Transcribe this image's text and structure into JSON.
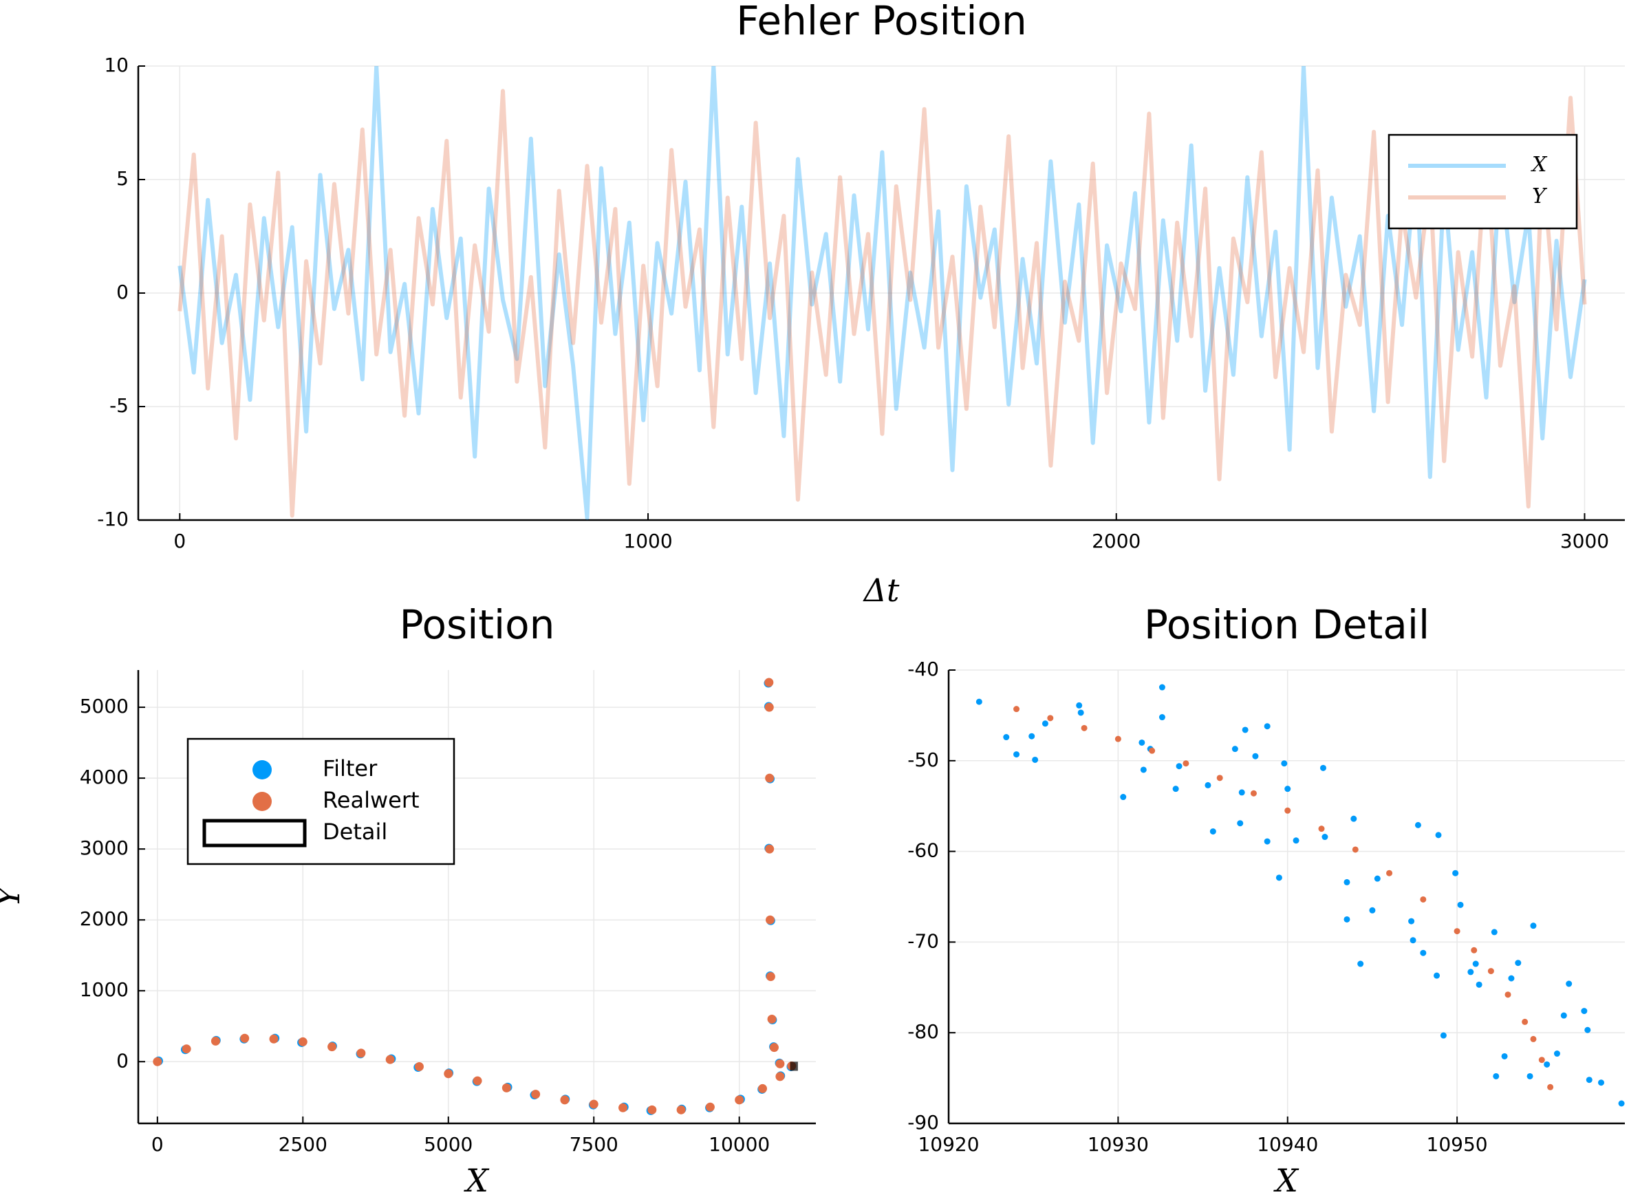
{
  "chart_data": [
    {
      "type": "line",
      "title": "Fehler Position",
      "xlabel": "Δt",
      "x": [
        0,
        30,
        60,
        90,
        120,
        150,
        180,
        210,
        240,
        270,
        300,
        330,
        360,
        390,
        420,
        450,
        480,
        510,
        540,
        570,
        600,
        630,
        660,
        690,
        720,
        750,
        780,
        810,
        840,
        870,
        900,
        930,
        960,
        990,
        1020,
        1050,
        1080,
        1110,
        1140,
        1170,
        1200,
        1230,
        1260,
        1290,
        1320,
        1350,
        1380,
        1410,
        1440,
        1470,
        1500,
        1530,
        1560,
        1590,
        1620,
        1650,
        1680,
        1710,
        1740,
        1770,
        1800,
        1830,
        1860,
        1890,
        1920,
        1950,
        1980,
        2010,
        2040,
        2070,
        2100,
        2130,
        2160,
        2190,
        2220,
        2250,
        2280,
        2310,
        2340,
        2370,
        2400,
        2430,
        2460,
        2490,
        2520,
        2550,
        2580,
        2610,
        2640,
        2670,
        2700,
        2730,
        2760,
        2790,
        2820,
        2850,
        2880,
        2910,
        2940,
        2970,
        3000
      ],
      "series": [
        {
          "name": "X",
          "color": "#009afa",
          "values": [
            1.2,
            -3.5,
            4.1,
            -2.2,
            0.8,
            -4.7,
            3.3,
            -1.5,
            2.9,
            -6.1,
            5.2,
            -0.7,
            1.9,
            -3.8,
            10,
            -2.6,
            0.4,
            -5.3,
            3.7,
            -1.1,
            2.4,
            -7.2,
            4.6,
            -0.3,
            -2.9,
            6.8,
            -4.1,
            1.7,
            -3.2,
            -9.9,
            5.5,
            -1.8,
            3.1,
            -5.6,
            2.2,
            -0.9,
            4.9,
            -3.4,
            10,
            -2.7,
            3.8,
            -4.4,
            1.3,
            -6.3,
            5.9,
            -0.5,
            2.6,
            -3.9,
            4.3,
            -1.6,
            6.2,
            -5.1,
            0.9,
            -2.4,
            3.6,
            -7.8,
            4.7,
            -0.2,
            2.8,
            -4.9,
            1.5,
            -3.1,
            5.8,
            -1.3,
            3.9,
            -6.6,
            2.1,
            -0.8,
            4.4,
            -5.7,
            3.2,
            -2.1,
            6.5,
            -4.3,
            1.1,
            -3.6,
            5.1,
            -1.9,
            2.7,
            -6.9,
            10,
            -3.3,
            4.2,
            -0.6,
            2.5,
            -5.2,
            3.4,
            -1.4,
            6.1,
            -8.1,
            4.8,
            -2.5,
            1.8,
            -4.6,
            5.6,
            -0.4,
            3.5,
            -6.4,
            2.3,
            -3.7,
            0.6
          ]
        },
        {
          "name": "Y",
          "color": "#e26f46",
          "values": [
            -0.8,
            6.1,
            -4.2,
            2.5,
            -6.4,
            3.9,
            -1.2,
            5.3,
            -9.8,
            1.4,
            -3.1,
            4.8,
            -0.9,
            7.2,
            -2.7,
            1.9,
            -5.4,
            3.3,
            -0.5,
            6.7,
            -4.6,
            2.1,
            -1.7,
            8.9,
            -3.9,
            0.7,
            -6.8,
            4.5,
            -2.2,
            5.6,
            -1.3,
            3.7,
            -8.4,
            1.2,
            -4.1,
            6.3,
            -0.6,
            2.8,
            -5.9,
            4.2,
            -2.9,
            7.5,
            -1.1,
            3.4,
            -9.1,
            0.9,
            -3.6,
            5.1,
            -1.8,
            2.6,
            -6.2,
            4.7,
            -0.3,
            8.1,
            -2.4,
            1.6,
            -5.1,
            3.8,
            -1.5,
            6.9,
            -3.3,
            2.2,
            -7.6,
            0.5,
            -2.1,
            5.7,
            -4.4,
            1.3,
            -0.7,
            7.9,
            -5.5,
            3.1,
            -1.9,
            4.6,
            -8.2,
            2.4,
            -0.4,
            6.2,
            -3.7,
            1.1,
            -2.6,
            5.4,
            -6.1,
            0.8,
            -1.4,
            7.1,
            -4.8,
            3.6,
            -0.2,
            4.9,
            -7.4,
            1.8,
            -2.8,
            6.4,
            -3.2,
            0.3,
            -9.4,
            5.8,
            -1.6,
            8.6,
            -0.5
          ]
        }
      ],
      "xlim": [
        -88.6,
        3086
      ],
      "ylim": [
        -10,
        10
      ],
      "xticks": [
        0,
        1000,
        2000,
        3000
      ],
      "yticks": [
        -10,
        -5,
        0,
        5,
        10
      ],
      "grid": true,
      "legend": "top right"
    },
    {
      "type": "scatter",
      "title": "Position",
      "xlabel": "X",
      "ylabel": "Y",
      "series": [
        {
          "name": "Filter",
          "color": "#009afa",
          "x": [
            20,
            480,
            1010,
            1490,
            2020,
            2480,
            3010,
            3490,
            4020,
            4480,
            5010,
            5490,
            6020,
            6480,
            7010,
            7490,
            8020,
            8480,
            9010,
            9490,
            10020,
            10390,
            10710,
            10890,
            10690,
            10590,
            10570,
            10530,
            10540,
            10510,
            10530,
            10505,
            10500
          ],
          "values": [
            10,
            170,
            300,
            320,
            330,
            270,
            220,
            110,
            40,
            -80,
            -160,
            -280,
            -360,
            -470,
            -530,
            -610,
            -640,
            -690,
            -670,
            -650,
            -530,
            -390,
            -200,
            -70,
            -20,
            210,
            590,
            1210,
            1990,
            3010,
            3990,
            5010,
            5340
          ]
        },
        {
          "name": "Realwert",
          "color": "#e26f46",
          "x": [
            0,
            500,
            1000,
            1500,
            2000,
            2500,
            3000,
            3500,
            4000,
            4500,
            5000,
            5500,
            6000,
            6500,
            7000,
            7500,
            8000,
            8500,
            9000,
            9500,
            10000,
            10400,
            10700,
            10900,
            10700,
            10600,
            10560,
            10540,
            10530,
            10520,
            10520,
            10515,
            10510
          ],
          "values": [
            0,
            180,
            290,
            330,
            320,
            280,
            210,
            120,
            30,
            -70,
            -170,
            -270,
            -370,
            -460,
            -540,
            -600,
            -650,
            -680,
            -680,
            -640,
            -540,
            -380,
            -210,
            -60,
            -30,
            200,
            600,
            1200,
            2000,
            3000,
            4000,
            5000,
            5350
          ]
        }
      ],
      "detail": {
        "name": "Detail",
        "x": [
          10920,
          10960
        ],
        "y": [
          -90,
          -40
        ]
      },
      "xlim": [
        -329,
        11316
      ],
      "ylim": [
        -871,
        5525
      ],
      "xticks": [
        0,
        2500,
        5000,
        7500,
        10000
      ],
      "yticks": [
        0,
        1000,
        2000,
        3000,
        4000,
        5000
      ],
      "grid": true,
      "legend": "top left"
    },
    {
      "type": "scatter",
      "title": "Position Detail",
      "xlabel": "X",
      "series": [
        {
          "name": "Filter",
          "color": "#009afa",
          "x": [
            10921.8,
            10923.4,
            10924.0,
            10924.9,
            10925.1,
            10925.7,
            10927.7,
            10927.8,
            10930.3,
            10931.4,
            10931.5,
            10931.9,
            10932.6,
            10932.6,
            10933.4,
            10933.6,
            10935.6,
            10935.3,
            10936.9,
            10937.2,
            10937.5,
            10937.3,
            10938.1,
            10938.8,
            10938.8,
            10939.5,
            10939.8,
            10940.0,
            10940.5,
            10942.1,
            10942.2,
            10943.5,
            10943.9,
            10943.5,
            10944.3,
            10945.0,
            10945.3,
            10947.3,
            10947.7,
            10947.4,
            10948.9,
            10948.0,
            10949.2,
            10948.8,
            10949.9,
            10950.2,
            10950.8,
            10951.1,
            10951.3,
            10952.2,
            10952.3,
            10952.8,
            10953.2,
            10953.6,
            10954.3,
            10954.5,
            10955.3,
            10955.9,
            10956.3,
            10956.6,
            10957.5,
            10957.7,
            10957.8,
            10958.5,
            10959.7
          ],
          "values": [
            -43.5,
            -47.4,
            -49.3,
            -47.3,
            -49.9,
            -45.9,
            -43.9,
            -44.7,
            -54.0,
            -48.0,
            -51.0,
            -48.7,
            -45.2,
            -41.9,
            -53.1,
            -50.6,
            -57.8,
            -52.7,
            -48.7,
            -56.9,
            -46.6,
            -53.5,
            -49.5,
            -46.2,
            -58.9,
            -62.9,
            -50.3,
            -53.1,
            -58.8,
            -50.8,
            -58.4,
            -63.4,
            -56.4,
            -67.5,
            -72.4,
            -66.5,
            -63.0,
            -67.7,
            -57.1,
            -69.8,
            -58.2,
            -71.2,
            -80.3,
            -73.7,
            -62.4,
            -65.9,
            -73.3,
            -72.4,
            -74.7,
            -68.9,
            -84.8,
            -82.6,
            -74.0,
            -72.3,
            -84.8,
            -68.2,
            -83.5,
            -82.3,
            -78.1,
            -74.6,
            -77.6,
            -79.7,
            -85.2,
            -85.5,
            -87.8
          ]
        },
        {
          "name": "Realwert",
          "color": "#e26f46",
          "x": [
            10924,
            10926,
            10928,
            10930,
            10932,
            10934,
            10936,
            10938,
            10940,
            10942,
            10944,
            10946,
            10948,
            10950,
            10951,
            10952,
            10953,
            10954,
            10954.5,
            10955,
            10955.5
          ],
          "values": [
            -44.3,
            -45.3,
            -46.4,
            -47.6,
            -48.9,
            -50.3,
            -51.9,
            -53.6,
            -55.5,
            -57.5,
            -59.8,
            -62.4,
            -65.3,
            -68.8,
            -70.9,
            -73.2,
            -75.8,
            -78.8,
            -80.7,
            -83,
            -86
          ]
        }
      ],
      "xlim": [
        10920,
        10959.9
      ],
      "ylim": [
        -90,
        -40
      ],
      "xticks": [
        10920,
        10930,
        10940,
        10950
      ],
      "yticks": [
        -90,
        -80,
        -70,
        -60,
        -50,
        -40
      ],
      "grid": true
    }
  ]
}
